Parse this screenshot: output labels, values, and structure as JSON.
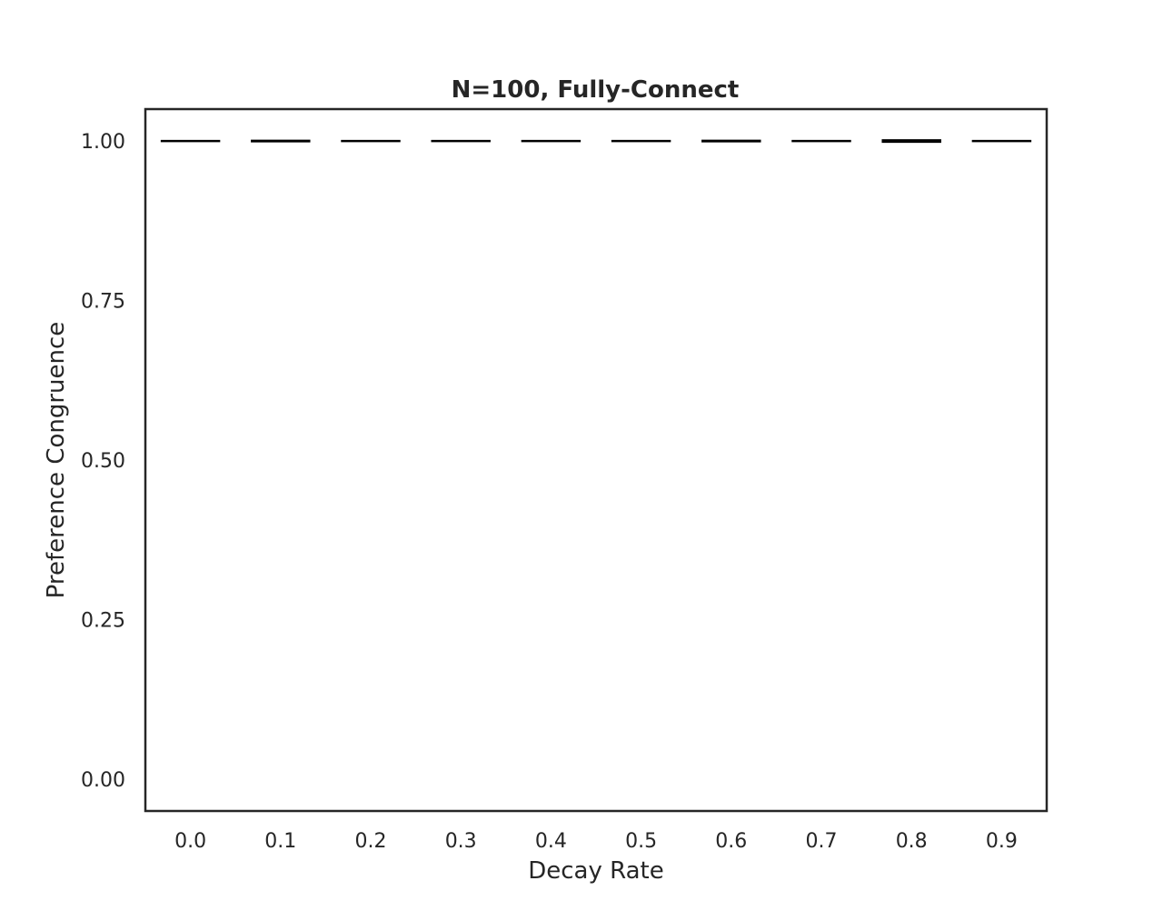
{
  "chart_data": {
    "type": "box",
    "title": "N=100, Fully-Connect",
    "xlabel": "Decay Rate",
    "ylabel": "Preference Congruence",
    "categories": [
      "0.0",
      "0.1",
      "0.2",
      "0.3",
      "0.4",
      "0.5",
      "0.6",
      "0.7",
      "0.8",
      "0.9"
    ],
    "values": [
      1.0,
      1.0,
      1.0,
      1.0,
      1.0,
      1.0,
      1.0,
      1.0,
      1.0,
      1.0
    ],
    "yticks": [
      "0.00",
      "0.25",
      "0.50",
      "0.75",
      "1.00"
    ],
    "ylim": [
      -0.05,
      1.05
    ],
    "grid": false,
    "colors": {
      "axis": "#262626",
      "mark": "#000000"
    }
  }
}
